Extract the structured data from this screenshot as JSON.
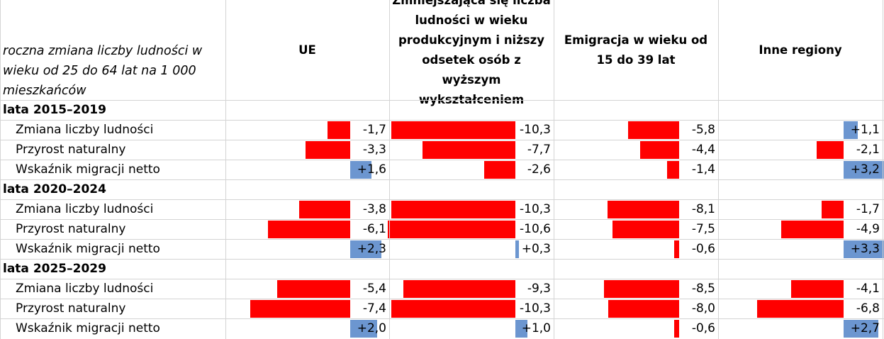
{
  "corner_label": "roczna zmiana liczby ludności w wieku od 25 do 64 lat na 1 000 mieszkańców",
  "columns": [
    "UE",
    "Zmniejszająca się liczba ludności w wieku produkcyjnym i niższy odsetek osób z wyższym wykształceniem",
    "Emigracja w wieku od 15 do 39 lat",
    "Inne regiony"
  ],
  "colors": {
    "negative": "#ff0000",
    "positive": "#6c96d0"
  },
  "chart_data": {
    "type": "table",
    "sections": [
      {
        "label": "lata 2015–2019",
        "rows": [
          {
            "label": "Zmiana liczby ludności",
            "values": [
              -1.7,
              -10.3,
              -5.8,
              1.1
            ],
            "display": [
              "-1,7",
              "-10,3",
              "-5,8",
              "+1,1"
            ]
          },
          {
            "label": "Przyrost naturalny",
            "values": [
              -3.3,
              -7.7,
              -4.4,
              -2.1
            ],
            "display": [
              "-3,3",
              "-7,7",
              "-4,4",
              "-2,1"
            ]
          },
          {
            "label": "Wskaźnik migracji netto",
            "values": [
              1.6,
              -2.6,
              -1.4,
              3.2
            ],
            "display": [
              "+1,6",
              "-2,6",
              "-1,4",
              "+3,2"
            ]
          }
        ]
      },
      {
        "label": "lata 2020–2024",
        "rows": [
          {
            "label": "Zmiana liczby ludności",
            "values": [
              -3.8,
              -10.3,
              -8.1,
              -1.7
            ],
            "display": [
              "-3,8",
              "-10,3",
              "-8,1",
              "-1,7"
            ]
          },
          {
            "label": "Przyrost naturalny",
            "values": [
              -6.1,
              -10.6,
              -7.5,
              -4.9
            ],
            "display": [
              "-6,1",
              "-10,6",
              "-7,5",
              "-4,9"
            ]
          },
          {
            "label": "Wskaźnik migracji netto",
            "values": [
              2.3,
              0.3,
              -0.6,
              3.3
            ],
            "display": [
              "+2,3",
              "+0,3",
              "-0,6",
              "+3,3"
            ]
          }
        ]
      },
      {
        "label": "lata 2025–2029",
        "rows": [
          {
            "label": "Zmiana liczby ludności",
            "values": [
              -5.4,
              -9.3,
              -8.5,
              -4.1
            ],
            "display": [
              "-5,4",
              "-9,3",
              "-8,5",
              "-4,1"
            ]
          },
          {
            "label": "Przyrost naturalny",
            "values": [
              -7.4,
              -10.3,
              -8.0,
              -6.8
            ],
            "display": [
              "-7,4",
              "-10,3",
              "-8,0",
              "-6,8"
            ]
          },
          {
            "label": "Wskaźnik migracji netto",
            "values": [
              2.0,
              1.0,
              -0.6,
              2.7
            ],
            "display": [
              "+2,0",
              "+1,0",
              "-0,6",
              "+2,7"
            ]
          }
        ]
      }
    ]
  }
}
